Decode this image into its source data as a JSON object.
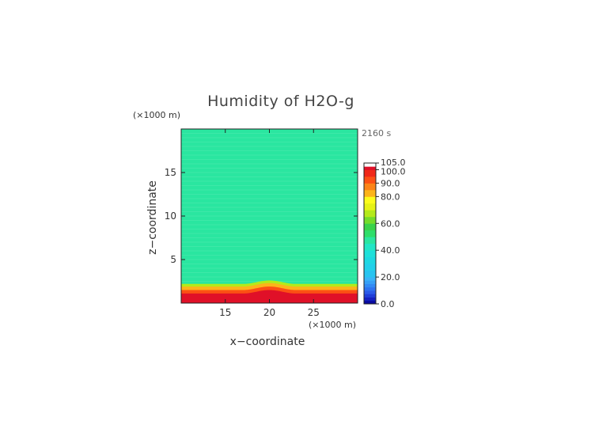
{
  "chart_data": {
    "type": "heatmap",
    "title": "Humidity of H2O-g",
    "xlabel": "x−coordinate",
    "ylabel": "z−coordinate",
    "x_unit": "(×1000 m)",
    "y_unit": "(×1000 m)",
    "time_label": "2160 s",
    "xlim": [
      10,
      30
    ],
    "ylim": [
      0,
      20
    ],
    "x_ticks": [
      15,
      20,
      25
    ],
    "y_ticks": [
      5,
      10,
      15
    ],
    "field": {
      "background_value": 45,
      "moist_layer": [
        {
          "z_top": 2.2,
          "value": 65
        },
        {
          "z_top": 1.9,
          "value": 80
        },
        {
          "z_top": 1.5,
          "value": 92
        },
        {
          "z_top": 1.1,
          "value": 100
        }
      ],
      "bump_center_x": 20,
      "bump_height_z": 0.4,
      "bump_half_width_x": 3
    },
    "colorbar": {
      "tick_labels": [
        "105.0",
        "100.0",
        "90.0",
        "80.0",
        "60.0",
        "40.0",
        "20.0",
        "0.0"
      ],
      "tick_values": [
        105,
        100,
        90,
        80,
        60,
        40,
        20,
        0
      ],
      "levels": [
        {
          "min": 0,
          "max": 2.5,
          "color": "#0a0aa0"
        },
        {
          "min": 2.5,
          "max": 5,
          "color": "#1420c0"
        },
        {
          "min": 5,
          "max": 7.5,
          "color": "#1e3ed8"
        },
        {
          "min": 7.5,
          "max": 10,
          "color": "#2a5ae8"
        },
        {
          "min": 10,
          "max": 12.5,
          "color": "#2e72f0"
        },
        {
          "min": 12.5,
          "max": 15,
          "color": "#328af4"
        },
        {
          "min": 15,
          "max": 17.5,
          "color": "#36a0f6"
        },
        {
          "min": 17.5,
          "max": 20,
          "color": "#3ab4f8"
        },
        {
          "min": 20,
          "max": 25,
          "color": "#28c4f0"
        },
        {
          "min": 25,
          "max": 30,
          "color": "#22d0ea"
        },
        {
          "min": 30,
          "max": 35,
          "color": "#1ed8e2"
        },
        {
          "min": 35,
          "max": 40,
          "color": "#1ee0da"
        },
        {
          "min": 40,
          "max": 45,
          "color": "#22e6c6"
        },
        {
          "min": 45,
          "max": 50,
          "color": "#2ae6a0"
        },
        {
          "min": 50,
          "max": 55,
          "color": "#2ede6a"
        },
        {
          "min": 55,
          "max": 60,
          "color": "#3ad24a"
        },
        {
          "min": 60,
          "max": 65,
          "color": "#74dc2a"
        },
        {
          "min": 65,
          "max": 70,
          "color": "#b4ea1a"
        },
        {
          "min": 70,
          "max": 75,
          "color": "#e6f216"
        },
        {
          "min": 75,
          "max": 80,
          "color": "#fcfc1c"
        },
        {
          "min": 80,
          "max": 85,
          "color": "#fcb41a"
        },
        {
          "min": 85,
          "max": 90,
          "color": "#fc8418"
        },
        {
          "min": 90,
          "max": 95,
          "color": "#fc5014"
        },
        {
          "min": 95,
          "max": 100,
          "color": "#f02818"
        },
        {
          "min": 100,
          "max": 102.5,
          "color": "#e01028"
        },
        {
          "min": 102.5,
          "max": 105,
          "color": "#ffffff"
        }
      ]
    }
  }
}
